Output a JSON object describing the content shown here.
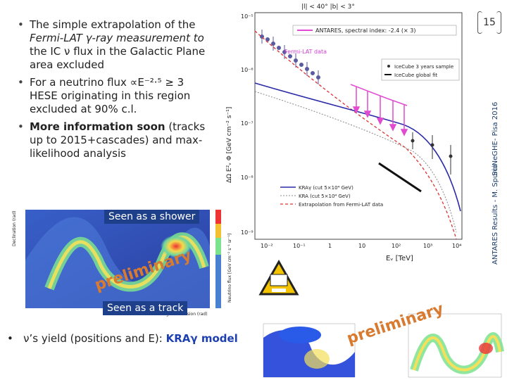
{
  "page_number": "15",
  "side_text": {
    "main": "ANTARES Results - M. Spurio",
    "event": "SciNeGHE- Pisa 2016"
  },
  "bullets": [
    {
      "lines": [
        "The simple extrapolation of the",
        "Fermi-LAT γ-ray measurement to",
        "the IC ν flux in the Galactic Plane",
        "area excluded"
      ]
    },
    {
      "lines": [
        "For a neutrino flux ∝E⁻²·⁵  ≥ 3",
        "HESE originating in this region",
        "excluded at 90% c.l."
      ]
    },
    {
      "bold_lead": "More information soon",
      "lines": [
        "More information soon (tracks",
        "up to 2015+cascades) and max-",
        "likelihood analysis"
      ]
    }
  ],
  "bottom_bullet": {
    "prefix": "ν’s yield (positions and E): ",
    "highlight": "KRAγ model"
  },
  "shower_label": "Seen as a shower",
  "track_label": "Seen as a track",
  "preliminary": "preliminary",
  "preliminary_2": "preliminary",
  "plot": {
    "header": "|l| < 40°   |b| < 3°",
    "ylabel": "ΔΩ E²ᵥ Φ [GeV cm⁻² s⁻¹]",
    "xlabel": "Eᵥ [TeV]",
    "yticks": [
      "10⁻⁵",
      "10⁻⁶",
      "10⁻⁷",
      "10⁻⁸",
      "10⁻⁹"
    ],
    "xticks": [
      "10⁻²",
      "10⁻¹",
      "1",
      "10",
      "10²",
      "10³",
      "10⁴"
    ],
    "fermi_label": "Fermi-LAT data",
    "legend_top": "ANTARES, spectral index: -2.4 (× 3)",
    "legend_right": [
      "IceCube 3 years sample",
      "IceCube global fit"
    ],
    "legend_bottom": [
      "KRAγ (cut 5×10⁴ GeV)",
      "KRA (cut 5×10⁴ GeV)",
      "Extrapolation from Fermi-LAT data"
    ]
  },
  "sky1": {
    "ylabel": "Declination (rad)",
    "xlabel": "Right Ascension (rad)",
    "cbar": "Neutrino flux [GeV cm⁻² s⁻¹ sr⁻¹]"
  },
  "colors": {
    "accent_blue": "#1e3f8a",
    "prelim_orange": "#d87a2f",
    "antares_magenta": "#e14bd1"
  }
}
